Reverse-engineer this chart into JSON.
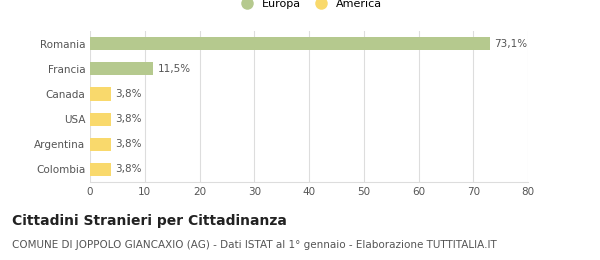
{
  "categories": [
    "Romania",
    "Francia",
    "Canada",
    "USA",
    "Argentina",
    "Colombia"
  ],
  "values": [
    73.1,
    11.5,
    3.8,
    3.8,
    3.8,
    3.8
  ],
  "labels": [
    "73,1%",
    "11,5%",
    "3,8%",
    "3,8%",
    "3,8%",
    "3,8%"
  ],
  "bar_colors": [
    "#b5c98e",
    "#b5c98e",
    "#f9d96c",
    "#f9d96c",
    "#f9d96c",
    "#f9d96c"
  ],
  "legend_items": [
    {
      "label": "Europa",
      "color": "#b5c98e"
    },
    {
      "label": "America",
      "color": "#f9d96c"
    }
  ],
  "xlim": [
    0,
    80
  ],
  "xticks": [
    0,
    10,
    20,
    30,
    40,
    50,
    60,
    70,
    80
  ],
  "title": "Cittadini Stranieri per Cittadinanza",
  "subtitle": "COMUNE DI JOPPOLO GIANCAXIO (AG) - Dati ISTAT al 1° gennaio - Elaborazione TUTTITALIA.IT",
  "title_fontsize": 10,
  "subtitle_fontsize": 7.5,
  "label_fontsize": 7.5,
  "tick_fontsize": 7.5,
  "background_color": "#ffffff",
  "grid_color": "#dddddd"
}
